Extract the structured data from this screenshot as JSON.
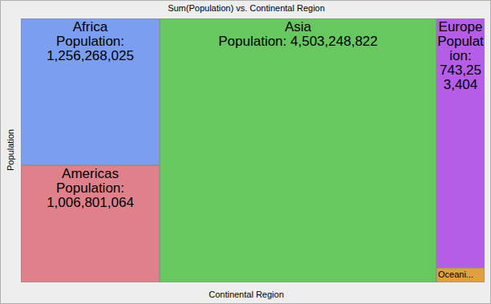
{
  "chart_data": {
    "type": "treemap",
    "title": "Sum(Population) vs. Continental Region",
    "x_label": "Continental Region",
    "y_label": "Population",
    "categories": [
      "Africa",
      "Americas",
      "Asia",
      "Europe",
      "Oceani..."
    ],
    "values": [
      1256268025,
      1006801064,
      4503248822,
      743253404,
      43000000
    ],
    "value_labels": [
      "Population: 1,256,268,025",
      "Population: 1,006,801,064",
      "Population: 4,503,248,822",
      "Population: 743,253,404",
      null
    ],
    "colors": [
      "#7b9ef0",
      "#e0808a",
      "#66c85f",
      "#b65de8",
      "#e0a040"
    ],
    "data_labels": true
  }
}
